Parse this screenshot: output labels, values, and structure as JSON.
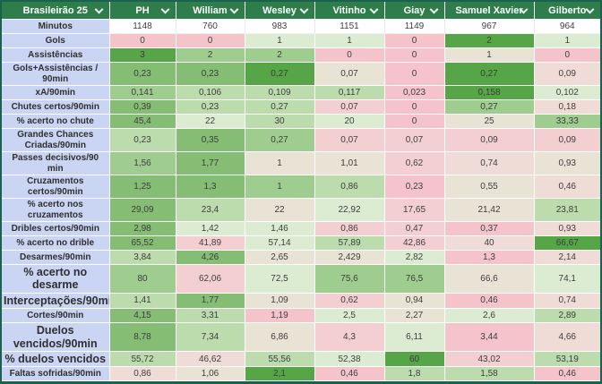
{
  "palette": {
    "header_bg": "#2e7d4b",
    "label_bg": "#c9d5f2",
    "outer_border": "#1b6150",
    "value_text": "#3e3e3e",
    "header_text": "#ffffff",
    "cells": {
      "w": "#ffffff",
      "g5": "#56a546",
      "g4": "#84bd73",
      "g3": "#9fcd90",
      "g2": "#bcdcae",
      "g1": "#dcecd3",
      "n": "#e9e3d6",
      "pb": "#efdcd7",
      "p1": "#f3cfd2",
      "p2": "#f5c4ca"
    }
  },
  "icons": {
    "header_dropdown": "chevron-down-icon"
  },
  "table": {
    "corner_label": "Brasileirão 25",
    "players": [
      "PH",
      "William",
      "Wesley",
      "Vitinho",
      "Giay",
      "Samuel Xavier",
      "Gilberto"
    ],
    "rows": [
      {
        "label": "Minutos",
        "size": "sm",
        "values": [
          "1148",
          "760",
          "983",
          "1151",
          "1149",
          "967",
          "964"
        ],
        "colors": [
          "w",
          "w",
          "w",
          "w",
          "w",
          "w",
          "w"
        ]
      },
      {
        "label": "Gols",
        "size": "sm",
        "values": [
          "0",
          "0",
          "1",
          "1",
          "0",
          "2",
          "1"
        ],
        "colors": [
          "p2",
          "p2",
          "g1",
          "g1",
          "p2",
          "g5",
          "g1"
        ]
      },
      {
        "label": "Assistências",
        "size": "sm",
        "values": [
          "3",
          "2",
          "2",
          "0",
          "0",
          "1",
          "0"
        ],
        "colors": [
          "g5",
          "g3",
          "g3",
          "p2",
          "p2",
          "n",
          "p2"
        ]
      },
      {
        "label": "Gols+Assistências / 90min",
        "size": "sm",
        "values": [
          "0,23",
          "0,23",
          "0,27",
          "0,07",
          "0",
          "0,27",
          "0,09"
        ],
        "colors": [
          "g4",
          "g4",
          "g5",
          "n",
          "p2",
          "g5",
          "pb"
        ]
      },
      {
        "label": "xA/90min",
        "size": "sm",
        "values": [
          "0,141",
          "0,106",
          "0,109",
          "0,117",
          "0,023",
          "0,158",
          "0,102"
        ],
        "colors": [
          "g3",
          "g2",
          "g2",
          "g2",
          "p2",
          "g5",
          "g1"
        ]
      },
      {
        "label": "Chutes certos/90min",
        "size": "sm",
        "values": [
          "0,39",
          "0,23",
          "0,27",
          "0,07",
          "0",
          "0,27",
          "0,18"
        ],
        "colors": [
          "g4",
          "g2",
          "g2",
          "p1",
          "p2",
          "g3",
          "pb"
        ]
      },
      {
        "label": "% acerto no chute",
        "size": "sm",
        "values": [
          "45,4",
          "22",
          "30",
          "20",
          "0",
          "25",
          "33,33"
        ],
        "colors": [
          "g4",
          "g1",
          "g2",
          "g1",
          "p2",
          "n",
          "g3"
        ]
      },
      {
        "label": "Grandes Chances Criadas/90min",
        "size": "sm",
        "values": [
          "0,23",
          "0,35",
          "0,27",
          "0,07",
          "0,07",
          "0,09",
          "0,09"
        ],
        "colors": [
          "g2",
          "g4",
          "g3",
          "p1",
          "p1",
          "p1",
          "p1"
        ]
      },
      {
        "label": "Passes decisivos/90 min",
        "size": "sm",
        "values": [
          "1,56",
          "1,77",
          "1",
          "1,01",
          "0,62",
          "0,74",
          "0,93"
        ],
        "colors": [
          "g3",
          "g4",
          "n",
          "n",
          "p1",
          "pb",
          "n"
        ]
      },
      {
        "label": "Cruzamentos certos/90min",
        "size": "sm",
        "values": [
          "1,25",
          "1,3",
          "1",
          "0,86",
          "0,23",
          "0,55",
          "0,46"
        ],
        "colors": [
          "g4",
          "g4",
          "g3",
          "g2",
          "p2",
          "n",
          "pb"
        ]
      },
      {
        "label": "% acerto nos cruzamentos",
        "size": "sm",
        "values": [
          "29,09",
          "23,4",
          "22",
          "22,92",
          "17,65",
          "21,42",
          "23,81"
        ],
        "colors": [
          "g4",
          "g2",
          "n",
          "g1",
          "p1",
          "n",
          "g2"
        ]
      },
      {
        "label": "Dribles certos/90min",
        "size": "sm",
        "values": [
          "2,98",
          "1,42",
          "1,46",
          "0,86",
          "0,47",
          "0,37",
          "0,93"
        ],
        "colors": [
          "g4",
          "g1",
          "g1",
          "p1",
          "p1",
          "p2",
          "pb"
        ]
      },
      {
        "label": "% acerto no drible",
        "size": "sm",
        "values": [
          "65,52",
          "41,89",
          "57,14",
          "57,89",
          "42,86",
          "40",
          "66,67"
        ],
        "colors": [
          "g4",
          "p1",
          "g1",
          "g2",
          "p1",
          "pb",
          "g5"
        ]
      },
      {
        "label": "Desarmes/90min",
        "size": "sm",
        "values": [
          "3,84",
          "4,26",
          "2,65",
          "2,429",
          "2,82",
          "1,3",
          "2,14"
        ],
        "colors": [
          "g2",
          "g4",
          "n",
          "n",
          "g1",
          "p2",
          "pb"
        ]
      },
      {
        "label": "% acerto no desarme",
        "size": "lg-font",
        "values": [
          "80",
          "62,06",
          "72,5",
          "75,6",
          "76,5",
          "66,6",
          "74,1"
        ],
        "colors": [
          "g3",
          "p1",
          "g1",
          "g3",
          "g3",
          "n",
          "g1"
        ]
      },
      {
        "label": "Interceptações/90min",
        "size": "lg-font",
        "values": [
          "1,41",
          "1,77",
          "1,09",
          "0,62",
          "0,94",
          "0,46",
          "0,74"
        ],
        "colors": [
          "g2",
          "g4",
          "n",
          "p1",
          "n",
          "p2",
          "pb"
        ]
      },
      {
        "label": "Cortes/90min",
        "size": "sm",
        "values": [
          "4,15",
          "3,31",
          "1,19",
          "2,5",
          "2,27",
          "2,6",
          "2,89"
        ],
        "colors": [
          "g4",
          "g2",
          "p2",
          "g1",
          "n",
          "g1",
          "g2"
        ]
      },
      {
        "label": "Duelos vencidos/90min",
        "size": "lg",
        "values": [
          "8,78",
          "7,34",
          "6,86",
          "4,3",
          "6,11",
          "3,44",
          "4,66"
        ],
        "colors": [
          "g4",
          "g2",
          "n",
          "p1",
          "g1",
          "p2",
          "pb"
        ]
      },
      {
        "label": "% duelos vencidos",
        "size": "lg-font",
        "values": [
          "55,72",
          "46,62",
          "55,56",
          "52,38",
          "60",
          "43,02",
          "53,19"
        ],
        "colors": [
          "g2",
          "pb",
          "g2",
          "g1",
          "g5",
          "p1",
          "g2"
        ]
      },
      {
        "label": "Faltas sofridas/90min",
        "size": "sm",
        "values": [
          "0,86",
          "1,06",
          "2,1",
          "0,46",
          "1,8",
          "1,58",
          "0,46"
        ],
        "colors": [
          "pb",
          "n",
          "g5",
          "p2",
          "g2",
          "g2",
          "p2"
        ]
      }
    ]
  }
}
